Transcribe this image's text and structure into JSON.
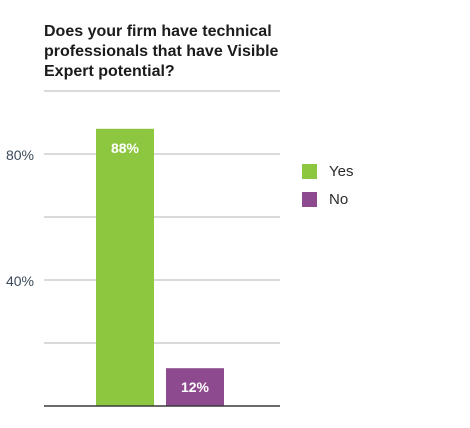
{
  "title_lines": [
    "Does your firm have technical",
    "professionals that have Visible",
    "Expert potential?"
  ],
  "chart_data": {
    "type": "bar",
    "title": "Does your firm have technical professionals that have Visible Expert potential?",
    "categories": [
      "Yes",
      "No"
    ],
    "values": [
      88,
      12
    ],
    "value_labels": [
      "88%",
      "12%"
    ],
    "colors": [
      "#8dc63f",
      "#8e4a8e"
    ],
    "ylim": [
      0,
      100
    ],
    "yticks": [
      20,
      40,
      60,
      80,
      100
    ],
    "ytick_labels": [
      "",
      "40%",
      "",
      "80%",
      ""
    ],
    "grid": true,
    "legend": {
      "position": "right",
      "entries": [
        {
          "label": "Yes",
          "color": "#8dc63f"
        },
        {
          "label": "No",
          "color": "#8e4a8e"
        }
      ]
    }
  }
}
